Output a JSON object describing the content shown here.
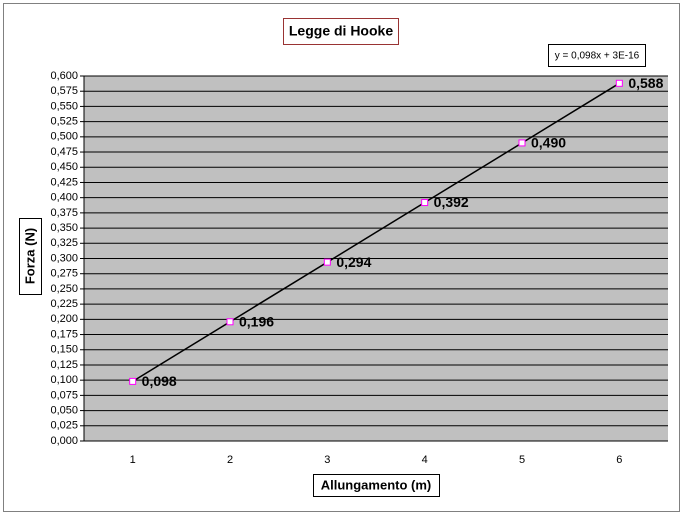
{
  "chart_data": {
    "type": "line",
    "title": "Legge di Hooke",
    "x_label": "Allungamento (m)",
    "y_label": "Forza (N)",
    "x": [
      1,
      2,
      3,
      4,
      5,
      6
    ],
    "xlim": [
      0.5,
      6.5
    ],
    "xticks": [
      1,
      2,
      3,
      4,
      5,
      6
    ],
    "series": [
      {
        "color": "#ff00ff",
        "values": [
          0.098,
          0.196,
          0.294,
          0.392,
          0.49,
          0.588
        ],
        "value_labels": [
          "0,098",
          "0,196",
          "0,294",
          "0,392",
          "0,490",
          "0,588"
        ]
      }
    ],
    "trendline": {
      "slope": 0.098,
      "intercept": 3e-16,
      "label": "y = 0,098x + 3E-16",
      "color": "#000000"
    },
    "ylim": [
      0,
      0.6
    ],
    "yticks": [
      {
        "value": 0,
        "label": "0,000"
      },
      {
        "value": 0.025,
        "label": "0,025"
      },
      {
        "value": 0.05,
        "label": "0,050"
      },
      {
        "value": 0.075,
        "label": "0,075"
      },
      {
        "value": 0.1,
        "label": "0,100"
      },
      {
        "value": 0.125,
        "label": "0,125"
      },
      {
        "value": 0.15,
        "label": "0,150"
      },
      {
        "value": 0.175,
        "label": "0,175"
      },
      {
        "value": 0.2,
        "label": "0,200"
      },
      {
        "value": 0.225,
        "label": "0,225"
      },
      {
        "value": 0.25,
        "label": "0,250"
      },
      {
        "value": 0.275,
        "label": "0,275"
      },
      {
        "value": 0.3,
        "label": "0,300"
      },
      {
        "value": 0.325,
        "label": "0,325"
      },
      {
        "value": 0.35,
        "label": "0,350"
      },
      {
        "value": 0.375,
        "label": "0,375"
      },
      {
        "value": 0.4,
        "label": "0,400"
      },
      {
        "value": 0.425,
        "label": "0,425"
      },
      {
        "value": 0.45,
        "label": "0,450"
      },
      {
        "value": 0.475,
        "label": "0,475"
      },
      {
        "value": 0.5,
        "label": "0,500"
      },
      {
        "value": 0.525,
        "label": "0,525"
      },
      {
        "value": 0.55,
        "label": "0,550"
      },
      {
        "value": 0.575,
        "label": "0,575"
      },
      {
        "value": 0.6,
        "label": "0,600"
      }
    ],
    "grid": true
  }
}
